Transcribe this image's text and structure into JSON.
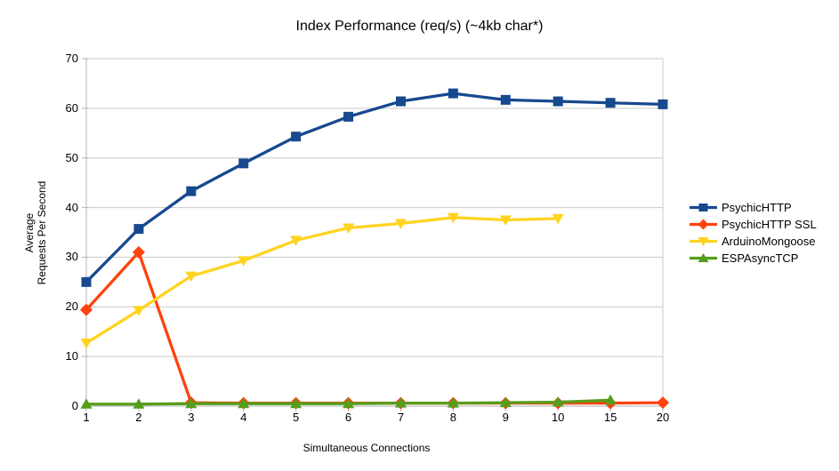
{
  "chart_data": {
    "type": "line",
    "title": "Index Performance (req/s) (~4kb char*)",
    "xlabel": "Simultaneous Connections",
    "ylabel": [
      "Average",
      "Requests Per Second"
    ],
    "categories": [
      "1",
      "2",
      "3",
      "4",
      "5",
      "6",
      "7",
      "8",
      "9",
      "10",
      "15",
      "20"
    ],
    "ylim": [
      0,
      70
    ],
    "y_ticks": [
      0,
      10,
      20,
      30,
      40,
      50,
      60,
      70
    ],
    "grid": "horizontal",
    "legend_position": "right",
    "series": [
      {
        "name": "PsychicHTTP",
        "color": "#17498F",
        "marker": "square",
        "values": [
          25.0,
          35.7,
          43.3,
          48.9,
          54.3,
          58.3,
          61.4,
          63.0,
          61.7,
          61.4,
          61.1,
          60.8
        ]
      },
      {
        "name": "PsychicHTTP SSL",
        "color": "#FF420E",
        "marker": "diamond",
        "values": [
          19.4,
          31.0,
          0.7,
          0.6,
          0.6,
          0.6,
          0.6,
          0.6,
          0.6,
          0.6,
          0.6,
          0.7
        ]
      },
      {
        "name": "ArduinoMongoose",
        "color": "#FFD320",
        "marker": "triangle-down",
        "values": [
          12.7,
          19.3,
          26.2,
          29.3,
          33.4,
          35.9,
          36.8,
          38.0,
          37.5,
          37.8,
          null,
          null
        ]
      },
      {
        "name": "ESPAsyncTCP",
        "color": "#579D1C",
        "marker": "triangle-up",
        "values": [
          0.4,
          0.4,
          0.5,
          0.5,
          0.5,
          0.5,
          0.6,
          0.6,
          0.7,
          0.8,
          1.2,
          null
        ]
      }
    ],
    "colors": {
      "gridline": "#C9C9C9",
      "axis": "#B3B3B3",
      "text": "#000000",
      "background": "#FFFFFF"
    }
  }
}
